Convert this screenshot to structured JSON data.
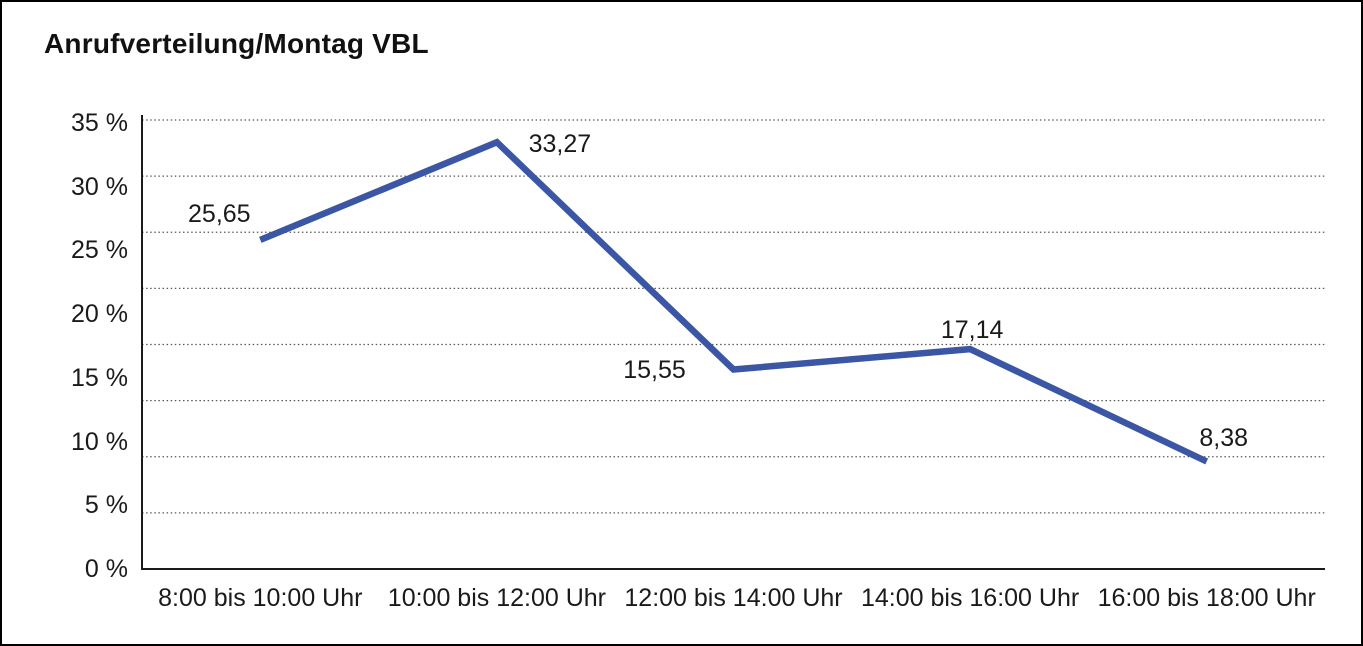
{
  "window": {
    "background": "#ffffff",
    "border_color": "#000000"
  },
  "chart_data": {
    "type": "line",
    "title": "Anrufverteilung/Montag VBL",
    "categories": [
      "8:00 bis 10:00 Uhr",
      "10:00 bis 12:00 Uhr",
      "12:00 bis 14:00 Uhr",
      "14:00 bis 16:00 Uhr",
      "16:00 bis 18:00 Uhr"
    ],
    "series": [
      {
        "values": [
          25.65,
          33.27,
          15.55,
          17.14,
          8.38
        ],
        "point_labels": [
          "25,65",
          "33,27",
          "15,55",
          "17,14",
          "8,38"
        ]
      }
    ],
    "xlabel": "",
    "ylabel": "",
    "ylim": [
      0,
      35
    ],
    "y_tick_step": 5,
    "y_tick_labels_top_to_bottom": [
      "35 %",
      "30 %",
      "25 %",
      "20 %",
      "15 %",
      "10 %",
      "5 %",
      "0 %"
    ],
    "legend": "none",
    "grid": {
      "horizontal": "dotted",
      "vertical": "none",
      "horizontal_divisions": 8
    },
    "colors": {
      "line": "#3A56A4",
      "axis": "#1a1a1a",
      "gridline": "#3c3c3c",
      "text": "#1a1a1a"
    }
  }
}
